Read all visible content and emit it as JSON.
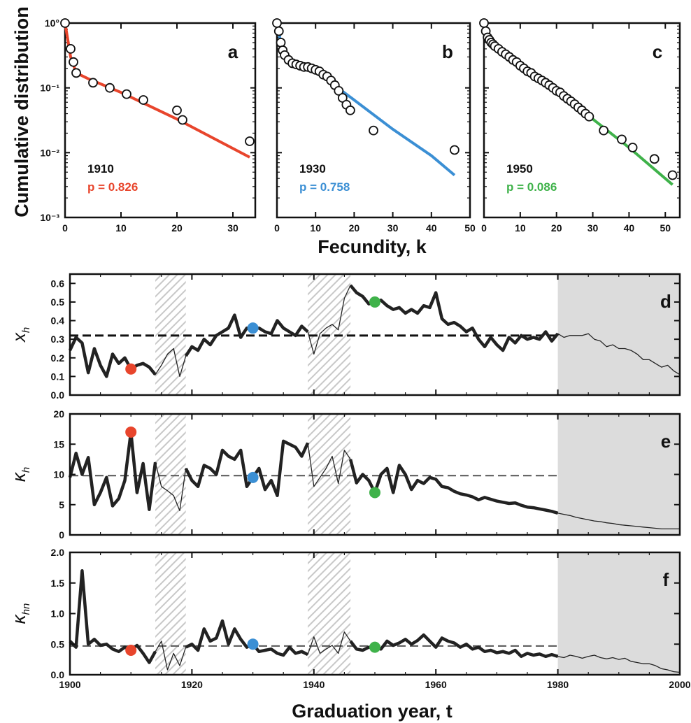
{
  "figure": {
    "top_ylabel": "Cumulative distribution",
    "top_xlabel": "Fecundity, k",
    "bottom_xlabel": "Graduation year, t"
  },
  "colors": {
    "red": "#e8452c",
    "blue": "#3b8fd4",
    "green": "#3fb24a",
    "shade": "#dcdcdc",
    "hatch": "#c8c8c8"
  },
  "chart_data": [
    {
      "type": "scatter",
      "panel": "a",
      "yscale": "log",
      "xlim": [
        0,
        34
      ],
      "ylim": [
        0.001,
        1
      ],
      "xticks": [
        "0",
        "10",
        "20",
        "30"
      ],
      "yticks": [
        "10°",
        "10⁻¹",
        "10⁻²",
        "10⁻³"
      ],
      "year": "1910",
      "p_text": "p = 0.826",
      "color": "red",
      "points": [
        [
          0,
          1
        ],
        [
          1,
          0.4
        ],
        [
          1.5,
          0.25
        ],
        [
          2,
          0.17
        ],
        [
          5,
          0.12
        ],
        [
          8,
          0.1
        ],
        [
          11,
          0.08
        ],
        [
          14,
          0.065
        ],
        [
          20,
          0.045
        ],
        [
          21,
          0.032
        ],
        [
          33,
          0.015
        ]
      ],
      "fit": [
        [
          0,
          1
        ],
        [
          0.5,
          0.55
        ],
        [
          1,
          0.3
        ],
        [
          2,
          0.17
        ],
        [
          4,
          0.14
        ],
        [
          10,
          0.085
        ],
        [
          20,
          0.033
        ],
        [
          33,
          0.0085
        ]
      ]
    },
    {
      "type": "scatter",
      "panel": "b",
      "yscale": "log",
      "xlim": [
        0,
        50
      ],
      "ylim": [
        0.001,
        1
      ],
      "xticks": [
        "0",
        "10",
        "20",
        "30",
        "40",
        "50"
      ],
      "year": "1930",
      "p_text": "p = 0.758",
      "color": "blue",
      "points": [
        [
          0,
          1
        ],
        [
          0.5,
          0.75
        ],
        [
          1,
          0.5
        ],
        [
          1.5,
          0.38
        ],
        [
          2,
          0.32
        ],
        [
          3,
          0.27
        ],
        [
          4,
          0.24
        ],
        [
          5,
          0.23
        ],
        [
          6,
          0.22
        ],
        [
          7,
          0.21
        ],
        [
          8,
          0.21
        ],
        [
          9,
          0.2
        ],
        [
          10,
          0.19
        ],
        [
          11,
          0.18
        ],
        [
          12,
          0.16
        ],
        [
          13,
          0.15
        ],
        [
          14,
          0.13
        ],
        [
          15,
          0.11
        ],
        [
          16,
          0.09
        ],
        [
          17,
          0.07
        ],
        [
          18,
          0.055
        ],
        [
          19,
          0.045
        ],
        [
          25,
          0.022
        ],
        [
          46,
          0.011
        ]
      ],
      "fit": [
        [
          0,
          1
        ],
        [
          1,
          0.5
        ],
        [
          2,
          0.35
        ],
        [
          5,
          0.24
        ],
        [
          10,
          0.18
        ],
        [
          20,
          0.065
        ],
        [
          30,
          0.023
        ],
        [
          40,
          0.009
        ],
        [
          46,
          0.0045
        ]
      ]
    },
    {
      "type": "scatter",
      "panel": "c",
      "yscale": "log",
      "xlim": [
        0,
        54
      ],
      "ylim": [
        0.001,
        1
      ],
      "xticks": [
        "0",
        "10",
        "20",
        "30",
        "40",
        "50"
      ],
      "year": "1950",
      "p_text": "p = 0.086",
      "color": "green",
      "points": [
        [
          0,
          1
        ],
        [
          0.5,
          0.75
        ],
        [
          1,
          0.6
        ],
        [
          1.5,
          0.55
        ],
        [
          2,
          0.5
        ],
        [
          2.5,
          0.47
        ],
        [
          3,
          0.44
        ],
        [
          4,
          0.4
        ],
        [
          5,
          0.36
        ],
        [
          6,
          0.33
        ],
        [
          7,
          0.3
        ],
        [
          8,
          0.27
        ],
        [
          9,
          0.25
        ],
        [
          10,
          0.22
        ],
        [
          11,
          0.2
        ],
        [
          12,
          0.18
        ],
        [
          13,
          0.17
        ],
        [
          14,
          0.15
        ],
        [
          15,
          0.14
        ],
        [
          16,
          0.13
        ],
        [
          17,
          0.12
        ],
        [
          18,
          0.11
        ],
        [
          19,
          0.1
        ],
        [
          20,
          0.09
        ],
        [
          21,
          0.085
        ],
        [
          22,
          0.075
        ],
        [
          23,
          0.068
        ],
        [
          24,
          0.062
        ],
        [
          25,
          0.056
        ],
        [
          26,
          0.05
        ],
        [
          27,
          0.045
        ],
        [
          28,
          0.04
        ],
        [
          29,
          0.036
        ],
        [
          33,
          0.022
        ],
        [
          38,
          0.016
        ],
        [
          41,
          0.012
        ],
        [
          47,
          0.008
        ],
        [
          52,
          0.0045
        ]
      ],
      "fit": [
        [
          0,
          1
        ],
        [
          1,
          0.7
        ],
        [
          2,
          0.55
        ],
        [
          10,
          0.23
        ],
        [
          20,
          0.09
        ],
        [
          30,
          0.033
        ],
        [
          40,
          0.012
        ],
        [
          52,
          0.0032
        ]
      ]
    },
    {
      "type": "line",
      "panel": "d",
      "ylabel_symbol": "x",
      "ylabel_sub": "h",
      "xlim": [
        1900,
        2000
      ],
      "ylim": [
        0,
        0.65
      ],
      "yticks": [
        "0.0",
        "0.1",
        "0.2",
        "0.3",
        "0.4",
        "0.5",
        "0.6"
      ],
      "reference": 0.32,
      "x": [
        1900,
        1901,
        1902,
        1903,
        1904,
        1905,
        1906,
        1907,
        1908,
        1909,
        1910,
        1911,
        1912,
        1913,
        1914,
        1915,
        1916,
        1917,
        1918,
        1919,
        1920,
        1921,
        1922,
        1923,
        1924,
        1925,
        1926,
        1927,
        1928,
        1929,
        1930,
        1931,
        1932,
        1933,
        1934,
        1935,
        1936,
        1937,
        1938,
        1939,
        1940,
        1941,
        1942,
        1943,
        1944,
        1945,
        1946,
        1947,
        1948,
        1949,
        1950,
        1951,
        1952,
        1953,
        1954,
        1955,
        1956,
        1957,
        1958,
        1959,
        1960,
        1961,
        1962,
        1963,
        1964,
        1965,
        1966,
        1967,
        1968,
        1969,
        1970,
        1971,
        1972,
        1973,
        1974,
        1975,
        1976,
        1977,
        1978,
        1979,
        1980,
        1981,
        1982,
        1983,
        1984,
        1985,
        1986,
        1987,
        1988,
        1989,
        1990,
        1991,
        1992,
        1993,
        1994,
        1995,
        1996,
        1997,
        1998,
        1999,
        2000
      ],
      "y": [
        0.24,
        0.31,
        0.28,
        0.12,
        0.25,
        0.16,
        0.1,
        0.22,
        0.17,
        0.2,
        0.14,
        0.16,
        0.17,
        0.15,
        0.11,
        0.16,
        0.22,
        0.25,
        0.1,
        0.21,
        0.26,
        0.24,
        0.3,
        0.27,
        0.32,
        0.34,
        0.36,
        0.43,
        0.31,
        0.36,
        0.36,
        0.36,
        0.34,
        0.33,
        0.4,
        0.36,
        0.34,
        0.32,
        0.37,
        0.34,
        0.22,
        0.33,
        0.36,
        0.38,
        0.35,
        0.52,
        0.59,
        0.55,
        0.53,
        0.49,
        0.5,
        0.51,
        0.48,
        0.46,
        0.47,
        0.44,
        0.46,
        0.44,
        0.48,
        0.47,
        0.55,
        0.41,
        0.38,
        0.39,
        0.37,
        0.34,
        0.36,
        0.3,
        0.26,
        0.31,
        0.27,
        0.24,
        0.31,
        0.28,
        0.32,
        0.3,
        0.31,
        0.3,
        0.34,
        0.29,
        0.33,
        0.31,
        0.32,
        0.32,
        0.32,
        0.33,
        0.3,
        0.29,
        0.26,
        0.27,
        0.25,
        0.25,
        0.24,
        0.22,
        0.19,
        0.19,
        0.17,
        0.15,
        0.16,
        0.13,
        0.11
      ]
    },
    {
      "type": "line",
      "panel": "e",
      "ylabel_symbol": "κ",
      "ylabel_sub": "h",
      "xlim": [
        1900,
        2000
      ],
      "ylim": [
        0,
        20
      ],
      "yticks": [
        "0",
        "5",
        "10",
        "15",
        "20"
      ],
      "reference": 9.8,
      "x": [
        1900,
        1901,
        1902,
        1903,
        1904,
        1905,
        1906,
        1907,
        1908,
        1909,
        1910,
        1911,
        1912,
        1913,
        1914,
        1915,
        1916,
        1917,
        1918,
        1919,
        1920,
        1921,
        1922,
        1923,
        1924,
        1925,
        1926,
        1927,
        1928,
        1929,
        1930,
        1931,
        1932,
        1933,
        1934,
        1935,
        1936,
        1937,
        1938,
        1939,
        1940,
        1941,
        1942,
        1943,
        1944,
        1945,
        1946,
        1947,
        1948,
        1949,
        1950,
        1951,
        1952,
        1953,
        1954,
        1955,
        1956,
        1957,
        1958,
        1959,
        1960,
        1961,
        1962,
        1963,
        1964,
        1965,
        1966,
        1967,
        1968,
        1969,
        1970,
        1971,
        1972,
        1973,
        1974,
        1975,
        1976,
        1977,
        1978,
        1979,
        1980,
        1981,
        1982,
        1983,
        1984,
        1985,
        1986,
        1987,
        1988,
        1989,
        1990,
        1991,
        1992,
        1993,
        1994,
        1995,
        1996,
        1997,
        1998,
        1999,
        2000
      ],
      "y": [
        9.5,
        13.5,
        10,
        12.8,
        5,
        7,
        9.5,
        4.8,
        6,
        9,
        17,
        7,
        11.8,
        4.2,
        12,
        8,
        7.3,
        6.5,
        4,
        11,
        9,
        8,
        11.5,
        11,
        10,
        14,
        13,
        12.5,
        14,
        8,
        9.5,
        11,
        7.5,
        9,
        6.5,
        15.5,
        15,
        14.5,
        13,
        15.2,
        8,
        9.5,
        11,
        13,
        8.5,
        14,
        12.5,
        8.6,
        10,
        9,
        7,
        10,
        11,
        7,
        11.5,
        10,
        7.5,
        9,
        8.5,
        9.5,
        9.2,
        8,
        7.8,
        7.2,
        6.8,
        6.6,
        6.3,
        5.8,
        6.2,
        5.9,
        5.6,
        5.4,
        5.2,
        5.3,
        4.9,
        4.6,
        4.5,
        4.3,
        4.1,
        3.9,
        3.6,
        3.4,
        3.2,
        2.9,
        2.7,
        2.5,
        2.3,
        2.2,
        2.0,
        1.9,
        1.7,
        1.6,
        1.5,
        1.4,
        1.3,
        1.2,
        1.1,
        1.0,
        1.0,
        1.0,
        1.0
      ]
    },
    {
      "type": "line",
      "panel": "f",
      "ylabel_symbol": "κ",
      "ylabel_sub": "hn",
      "xlim": [
        1900,
        2000
      ],
      "ylim": [
        0,
        2
      ],
      "yticks": [
        "0.0",
        "0.5",
        "1.0",
        "1.5",
        "2.0"
      ],
      "xticks": [
        "1900",
        "1920",
        "1940",
        "1960",
        "1980",
        "2000"
      ],
      "reference": 0.47,
      "x": [
        1900,
        1901,
        1902,
        1903,
        1904,
        1905,
        1906,
        1907,
        1908,
        1909,
        1910,
        1911,
        1912,
        1913,
        1914,
        1915,
        1916,
        1917,
        1918,
        1919,
        1920,
        1921,
        1922,
        1923,
        1924,
        1925,
        1926,
        1927,
        1928,
        1929,
        1930,
        1931,
        1932,
        1933,
        1934,
        1935,
        1936,
        1937,
        1938,
        1939,
        1940,
        1941,
        1942,
        1943,
        1944,
        1945,
        1946,
        1947,
        1948,
        1949,
        1950,
        1951,
        1952,
        1953,
        1954,
        1955,
        1956,
        1957,
        1958,
        1959,
        1960,
        1961,
        1962,
        1963,
        1964,
        1965,
        1966,
        1967,
        1968,
        1969,
        1970,
        1971,
        1972,
        1973,
        1974,
        1975,
        1976,
        1977,
        1978,
        1979,
        1980,
        1981,
        1982,
        1983,
        1984,
        1985,
        1986,
        1987,
        1988,
        1989,
        1990,
        1991,
        1992,
        1993,
        1994,
        1995,
        1996,
        1997,
        1998,
        1999,
        2000
      ],
      "y": [
        0.55,
        0.45,
        1.7,
        0.5,
        0.58,
        0.48,
        0.5,
        0.42,
        0.38,
        0.45,
        0.4,
        0.48,
        0.35,
        0.2,
        0.38,
        0.55,
        0.08,
        0.35,
        0.15,
        0.45,
        0.5,
        0.4,
        0.75,
        0.55,
        0.6,
        0.88,
        0.5,
        0.75,
        0.58,
        0.45,
        0.5,
        0.38,
        0.4,
        0.42,
        0.35,
        0.32,
        0.45,
        0.35,
        0.38,
        0.33,
        0.62,
        0.35,
        0.42,
        0.48,
        0.35,
        0.7,
        0.55,
        0.42,
        0.4,
        0.45,
        0.45,
        0.42,
        0.55,
        0.48,
        0.52,
        0.58,
        0.5,
        0.56,
        0.65,
        0.55,
        0.45,
        0.6,
        0.55,
        0.52,
        0.45,
        0.5,
        0.42,
        0.45,
        0.38,
        0.4,
        0.36,
        0.38,
        0.35,
        0.4,
        0.3,
        0.35,
        0.32,
        0.34,
        0.3,
        0.33,
        0.3,
        0.28,
        0.32,
        0.3,
        0.27,
        0.3,
        0.32,
        0.28,
        0.26,
        0.28,
        0.25,
        0.27,
        0.22,
        0.2,
        0.18,
        0.18,
        0.15,
        0.1,
        0.08,
        0.05,
        0.04
      ]
    }
  ]
}
